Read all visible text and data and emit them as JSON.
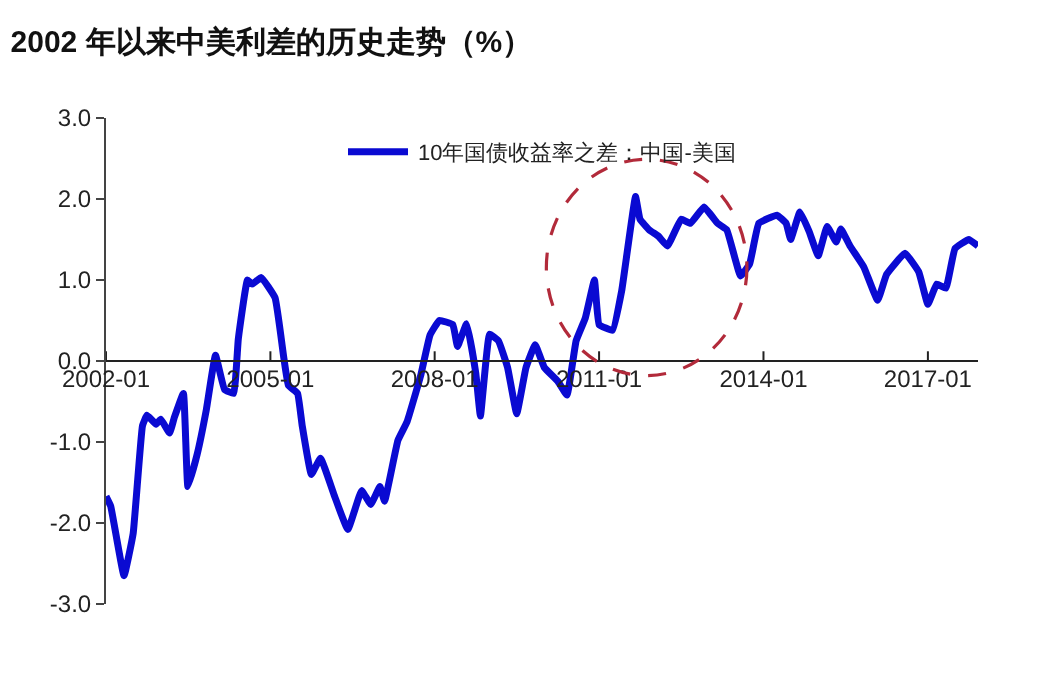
{
  "chart_data": {
    "type": "line",
    "title": "2002 年以来中美利差的历史走势（%）",
    "x": [
      "2002-01",
      "2002-02",
      "2002-05",
      "2002-07",
      "2002-09",
      "2002-10",
      "2002-12",
      "2003-01",
      "2003-03",
      "2003-04",
      "2003-06",
      "2003-07",
      "2003-09",
      "2003-11",
      "2004-01",
      "2004-03",
      "2004-05",
      "2004-06",
      "2004-08",
      "2004-09",
      "2004-11",
      "2005-02",
      "2005-04",
      "2005-05",
      "2005-07",
      "2005-08",
      "2005-10",
      "2005-12",
      "2006-03",
      "2006-06",
      "2006-09",
      "2006-11",
      "2007-01",
      "2007-02",
      "2007-05",
      "2007-07",
      "2007-10",
      "2007-12",
      "2008-02",
      "2008-05",
      "2008-06",
      "2008-08",
      "2008-10",
      "2008-11",
      "2009-01",
      "2009-03",
      "2009-05",
      "2009-07",
      "2009-09",
      "2009-11",
      "2010-01",
      "2010-04",
      "2010-06",
      "2010-08",
      "2010-10",
      "2010-12",
      "2011-01",
      "2011-04",
      "2011-06",
      "2011-09",
      "2011-10",
      "2011-12",
      "2012-02",
      "2012-04",
      "2012-07",
      "2012-09",
      "2012-12",
      "2013-03",
      "2013-05",
      "2013-08",
      "2013-10",
      "2013-12",
      "2014-04",
      "2014-06",
      "2014-07",
      "2014-09",
      "2014-11",
      "2015-01",
      "2015-03",
      "2015-05",
      "2015-06",
      "2015-08",
      "2015-11",
      "2016-02",
      "2016-04",
      "2016-08",
      "2016-11",
      "2017-01",
      "2017-03",
      "2017-05",
      "2017-07",
      "2017-10",
      "2017-12"
    ],
    "series": [
      {
        "name": "10年国债收益率之差：中国-美国",
        "color": "#0a0ad2",
        "values": [
          -1.67,
          -1.79,
          -2.65,
          -2.13,
          -0.8,
          -0.67,
          -0.78,
          -0.72,
          -0.89,
          -0.7,
          -0.4,
          -1.55,
          -1.15,
          -0.6,
          0.07,
          -0.35,
          -0.4,
          0.27,
          1.0,
          0.95,
          1.03,
          0.78,
          0.03,
          -0.3,
          -0.4,
          -0.8,
          -1.4,
          -1.2,
          -1.65,
          -2.08,
          -1.6,
          -1.77,
          -1.55,
          -1.73,
          -0.98,
          -0.75,
          -0.17,
          0.32,
          0.5,
          0.45,
          0.18,
          0.46,
          -0.15,
          -0.68,
          0.33,
          0.25,
          -0.08,
          -0.65,
          -0.08,
          0.2,
          -0.08,
          -0.25,
          -0.42,
          0.25,
          0.53,
          1.0,
          0.45,
          0.38,
          0.87,
          2.03,
          1.75,
          1.62,
          1.54,
          1.42,
          1.75,
          1.7,
          1.9,
          1.7,
          1.62,
          1.05,
          1.2,
          1.7,
          1.8,
          1.7,
          1.5,
          1.84,
          1.6,
          1.3,
          1.66,
          1.47,
          1.63,
          1.42,
          1.16,
          0.75,
          1.07,
          1.33,
          1.1,
          0.7,
          0.95,
          0.9,
          1.39,
          1.5,
          1.42
        ]
      }
    ],
    "xlim": [
      "2002-01",
      "2017-12"
    ],
    "xticks": [
      {
        "value": "2002-01",
        "label": "2002-01"
      },
      {
        "value": "2005-01",
        "label": "2005-01"
      },
      {
        "value": "2008-01",
        "label": "2008-01"
      },
      {
        "value": "2011-01",
        "label": "2011-01"
      },
      {
        "value": "2014-01",
        "label": "2014-01"
      },
      {
        "value": "2017-01",
        "label": "2017-01"
      }
    ],
    "ylim": [
      -3,
      3
    ],
    "yticks": [
      {
        "value": -3,
        "label": "-3.0"
      },
      {
        "value": -2,
        "label": "-2.0"
      },
      {
        "value": -1,
        "label": "-1.0"
      },
      {
        "value": 0,
        "label": "0.0"
      },
      {
        "value": 1,
        "label": "1.0"
      },
      {
        "value": 2,
        "label": "2.0"
      },
      {
        "value": 3,
        "label": "3.0"
      }
    ],
    "legend": "top",
    "marker": "none",
    "line_style": "solid"
  }
}
